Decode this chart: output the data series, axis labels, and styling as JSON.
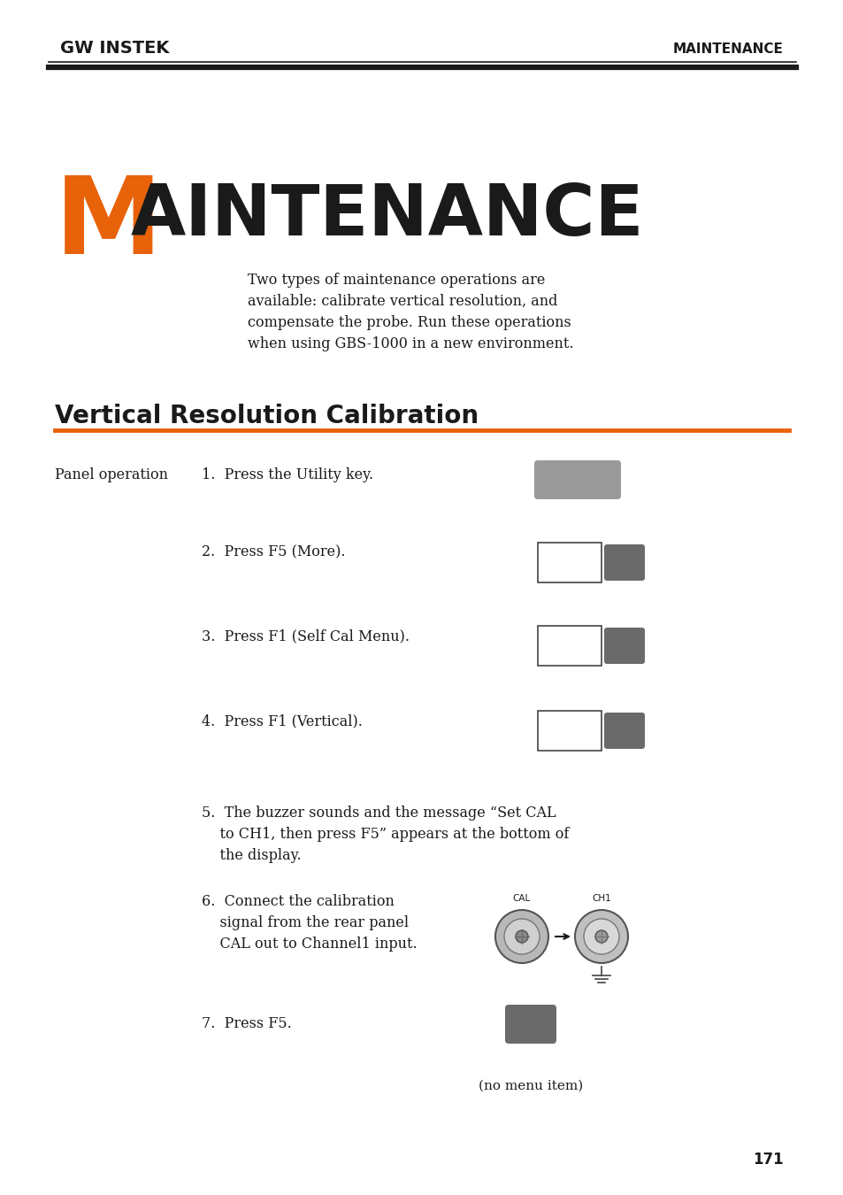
{
  "bg_color": "#ffffff",
  "header_left": "GW INSTEK",
  "header_right": "MAINTENANCE",
  "chapter_letter": "M",
  "chapter_letter_color": "#e8620a",
  "chapter_rest": "AINTENANCE",
  "intro_text": "Two types of maintenance operations are\navailable: calibrate vertical resolution, and\ncompensate the probe. Run these operations\nwhen using GBS-1000 in a new environment.",
  "section_title": "Vertical Resolution Calibration",
  "section_line_color": "#e8620a",
  "panel_op_label": "Panel operation",
  "step1": "1.  Press the Utility key.",
  "step2": "2.  Press F5 (More).",
  "step3": "3.  Press F1 (Self Cal Menu).",
  "step4": "4.  Press F1 (Vertical).",
  "step5": "5.  The buzzer sounds and the message “Set CAL\n    to CH1, then press F5” appears at the bottom of\n    the display.",
  "step6_text": "6.  Connect the calibration\n    signal from the rear panel\n    CAL out to Channel1 input.",
  "step7": "7.  Press F5.",
  "no_menu_item": "(no menu item)",
  "page_number": "171",
  "text_color": "#1a1a1a",
  "gray_btn1": "#9a9a9a",
  "gray_btn2": "#6a6a6a",
  "connector_gray": "#b0b0b0"
}
